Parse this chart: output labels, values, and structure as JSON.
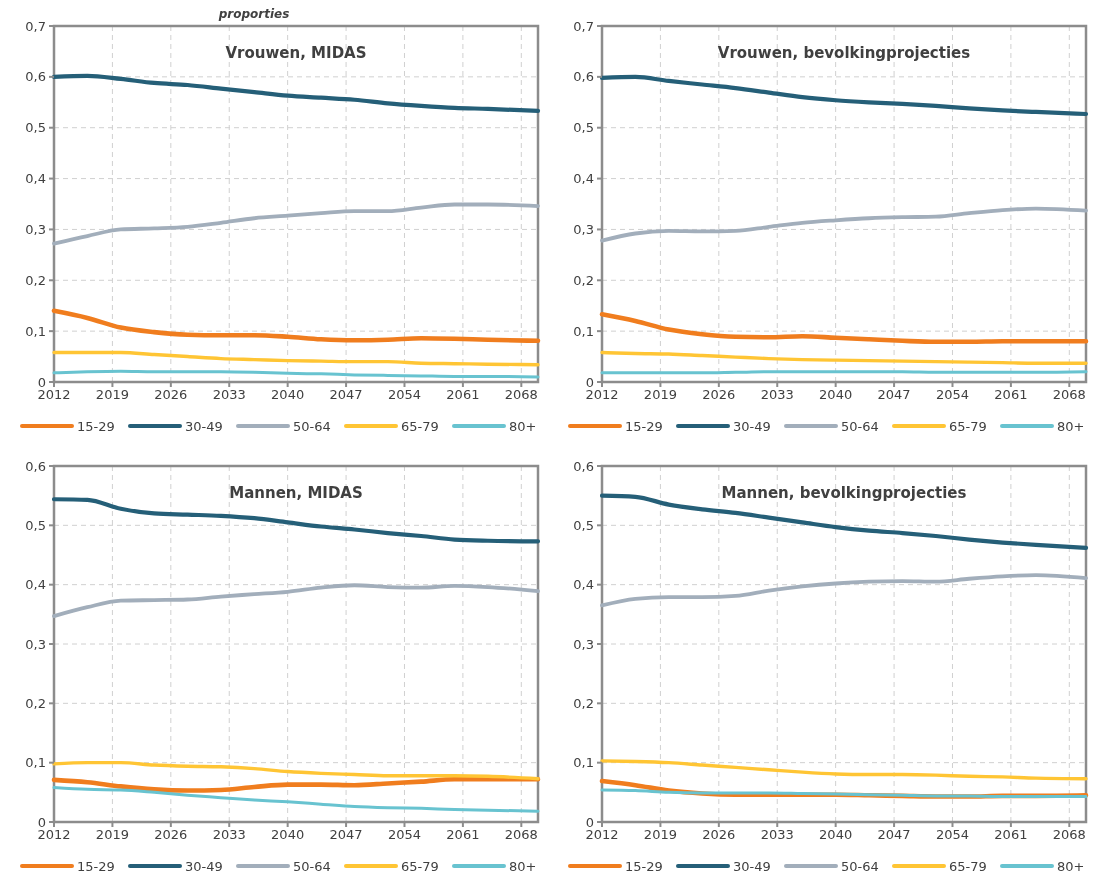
{
  "chart_data": [
    {
      "type": "line",
      "title": "Vrouwen, MIDAS",
      "ylabel": "proporties",
      "x": [
        2012,
        2016,
        2020,
        2024,
        2028,
        2032,
        2036,
        2040,
        2044,
        2048,
        2052,
        2056,
        2060,
        2064,
        2070
      ],
      "xlim": [
        2012,
        2070
      ],
      "xticks": [
        2012,
        2019,
        2026,
        2033,
        2040,
        2047,
        2054,
        2061,
        2068
      ],
      "ylim": [
        0,
        0.7
      ],
      "yticks": [
        {
          "value": 0,
          "label": "0"
        },
        {
          "value": 0.1,
          "label": "0,1"
        },
        {
          "value": 0.2,
          "label": "0,2"
        },
        {
          "value": 0.3,
          "label": "0,3"
        },
        {
          "value": 0.4,
          "label": "0,4"
        },
        {
          "value": 0.5,
          "label": "0,5"
        },
        {
          "value": 0.6,
          "label": "0,6"
        },
        {
          "value": 0.7,
          "label": "0,7"
        }
      ],
      "grid": true,
      "legend": "bottom",
      "line_style": "solid",
      "marker": "none",
      "series": [
        {
          "name": "15-29",
          "color": "#f07d1e",
          "values": [
            0.14,
            0.126,
            0.107,
            0.098,
            0.093,
            0.092,
            0.092,
            0.089,
            0.084,
            0.082,
            0.083,
            0.086,
            0.085,
            0.083,
            0.081
          ]
        },
        {
          "name": "30-49",
          "color": "#255f78",
          "values": [
            0.6,
            0.602,
            0.596,
            0.588,
            0.584,
            0.577,
            0.57,
            0.563,
            0.559,
            0.555,
            0.548,
            0.543,
            0.539,
            0.537,
            0.533
          ]
        },
        {
          "name": "50-64",
          "color": "#a2aebb",
          "values": [
            0.272,
            0.287,
            0.3,
            0.302,
            0.305,
            0.313,
            0.322,
            0.327,
            0.332,
            0.336,
            0.336,
            0.343,
            0.349,
            0.349,
            0.346
          ]
        },
        {
          "name": "65-79",
          "color": "#ffc534",
          "values": [
            0.058,
            0.058,
            0.058,
            0.054,
            0.05,
            0.046,
            0.044,
            0.042,
            0.041,
            0.04,
            0.04,
            0.037,
            0.036,
            0.035,
            0.034
          ]
        },
        {
          "name": "80+",
          "color": "#68c3d0",
          "values": [
            0.018,
            0.02,
            0.021,
            0.02,
            0.02,
            0.02,
            0.019,
            0.017,
            0.016,
            0.014,
            0.013,
            0.012,
            0.011,
            0.011,
            0.01
          ]
        }
      ]
    },
    {
      "type": "line",
      "title": "Vrouwen, bevolkingprojecties",
      "x": [
        2012,
        2016,
        2020,
        2024,
        2028,
        2032,
        2036,
        2040,
        2044,
        2048,
        2052,
        2056,
        2060,
        2064,
        2070
      ],
      "xlim": [
        2012,
        2070
      ],
      "xticks": [
        2012,
        2019,
        2026,
        2033,
        2040,
        2047,
        2054,
        2061,
        2068
      ],
      "ylim": [
        0,
        0.7
      ],
      "yticks": [
        {
          "value": 0,
          "label": "0"
        },
        {
          "value": 0.1,
          "label": "0,1"
        },
        {
          "value": 0.2,
          "label": "0,2"
        },
        {
          "value": 0.3,
          "label": "0,3"
        },
        {
          "value": 0.4,
          "label": "0,4"
        },
        {
          "value": 0.5,
          "label": "0,5"
        },
        {
          "value": 0.6,
          "label": "0,6"
        },
        {
          "value": 0.7,
          "label": "0,7"
        }
      ],
      "grid": true,
      "legend": "bottom",
      "line_style": "solid",
      "marker": "none",
      "series": [
        {
          "name": "15-29",
          "color": "#f07d1e",
          "values": [
            0.133,
            0.12,
            0.103,
            0.094,
            0.089,
            0.088,
            0.09,
            0.087,
            0.084,
            0.081,
            0.079,
            0.079,
            0.08,
            0.08,
            0.08
          ]
        },
        {
          "name": "30-49",
          "color": "#255f78",
          "values": [
            0.598,
            0.6,
            0.592,
            0.585,
            0.578,
            0.569,
            0.56,
            0.554,
            0.55,
            0.547,
            0.543,
            0.538,
            0.534,
            0.531,
            0.527
          ]
        },
        {
          "name": "50-64",
          "color": "#a2aebb",
          "values": [
            0.278,
            0.292,
            0.297,
            0.296,
            0.297,
            0.305,
            0.313,
            0.318,
            0.322,
            0.324,
            0.325,
            0.332,
            0.338,
            0.341,
            0.337
          ]
        },
        {
          "name": "65-79",
          "color": "#ffc534",
          "values": [
            0.058,
            0.056,
            0.055,
            0.052,
            0.049,
            0.046,
            0.044,
            0.043,
            0.042,
            0.041,
            0.04,
            0.039,
            0.038,
            0.037,
            0.037
          ]
        },
        {
          "name": "80+",
          "color": "#68c3d0",
          "values": [
            0.018,
            0.018,
            0.018,
            0.018,
            0.019,
            0.02,
            0.02,
            0.02,
            0.02,
            0.02,
            0.019,
            0.019,
            0.019,
            0.019,
            0.02
          ]
        }
      ]
    },
    {
      "type": "line",
      "title": "Mannen, MIDAS",
      "x": [
        2012,
        2016,
        2020,
        2024,
        2028,
        2032,
        2036,
        2040,
        2044,
        2048,
        2052,
        2056,
        2060,
        2064,
        2070
      ],
      "xlim": [
        2012,
        2070
      ],
      "xticks": [
        2012,
        2019,
        2026,
        2033,
        2040,
        2047,
        2054,
        2061,
        2068
      ],
      "ylim": [
        0,
        0.6
      ],
      "yticks": [
        {
          "value": 0,
          "label": "0"
        },
        {
          "value": 0.1,
          "label": "0,1"
        },
        {
          "value": 0.2,
          "label": "0,2"
        },
        {
          "value": 0.3,
          "label": "0,3"
        },
        {
          "value": 0.4,
          "label": "0,4"
        },
        {
          "value": 0.5,
          "label": "0,5"
        },
        {
          "value": 0.6,
          "label": "0,6"
        }
      ],
      "grid": true,
      "legend": "bottom",
      "line_style": "solid",
      "marker": "none",
      "series": [
        {
          "name": "15-29",
          "color": "#f07d1e",
          "values": [
            0.071,
            0.067,
            0.06,
            0.055,
            0.053,
            0.054,
            0.059,
            0.063,
            0.063,
            0.062,
            0.065,
            0.068,
            0.072,
            0.072,
            0.072
          ]
        },
        {
          "name": "30-49",
          "color": "#255f78",
          "values": [
            0.544,
            0.543,
            0.528,
            0.52,
            0.518,
            0.516,
            0.512,
            0.505,
            0.498,
            0.493,
            0.487,
            0.482,
            0.476,
            0.474,
            0.473
          ]
        },
        {
          "name": "50-64",
          "color": "#a2aebb",
          "values": [
            0.347,
            0.362,
            0.373,
            0.374,
            0.375,
            0.38,
            0.384,
            0.388,
            0.395,
            0.399,
            0.396,
            0.395,
            0.398,
            0.396,
            0.389
          ]
        },
        {
          "name": "65-79",
          "color": "#ffc534",
          "values": [
            0.098,
            0.1,
            0.1,
            0.096,
            0.094,
            0.093,
            0.09,
            0.085,
            0.082,
            0.08,
            0.078,
            0.078,
            0.078,
            0.077,
            0.073
          ]
        },
        {
          "name": "80+",
          "color": "#68c3d0",
          "values": [
            0.058,
            0.055,
            0.054,
            0.05,
            0.045,
            0.041,
            0.037,
            0.034,
            0.03,
            0.026,
            0.024,
            0.023,
            0.021,
            0.02,
            0.018
          ]
        }
      ]
    },
    {
      "type": "line",
      "title": "Mannen, bevolkingprojecties",
      "x": [
        2012,
        2016,
        2020,
        2024,
        2028,
        2032,
        2036,
        2040,
        2044,
        2048,
        2052,
        2056,
        2060,
        2064,
        2070
      ],
      "xlim": [
        2012,
        2070
      ],
      "xticks": [
        2012,
        2019,
        2026,
        2033,
        2040,
        2047,
        2054,
        2061,
        2068
      ],
      "ylim": [
        0,
        0.6
      ],
      "yticks": [
        {
          "value": 0,
          "label": "0"
        },
        {
          "value": 0.1,
          "label": "0,1"
        },
        {
          "value": 0.2,
          "label": "0,2"
        },
        {
          "value": 0.3,
          "label": "0,3"
        },
        {
          "value": 0.4,
          "label": "0,4"
        },
        {
          "value": 0.5,
          "label": "0,5"
        },
        {
          "value": 0.6,
          "label": "0,6"
        }
      ],
      "grid": true,
      "legend": "bottom",
      "line_style": "solid",
      "marker": "none",
      "series": [
        {
          "name": "15-29",
          "color": "#f07d1e",
          "values": [
            0.069,
            0.062,
            0.053,
            0.048,
            0.046,
            0.046,
            0.046,
            0.046,
            0.045,
            0.044,
            0.043,
            0.043,
            0.044,
            0.044,
            0.045
          ]
        },
        {
          "name": "30-49",
          "color": "#255f78",
          "values": [
            0.55,
            0.548,
            0.535,
            0.527,
            0.521,
            0.513,
            0.505,
            0.497,
            0.491,
            0.487,
            0.482,
            0.476,
            0.471,
            0.467,
            0.462
          ]
        },
        {
          "name": "50-64",
          "color": "#a2aebb",
          "values": [
            0.365,
            0.376,
            0.379,
            0.379,
            0.381,
            0.39,
            0.397,
            0.402,
            0.405,
            0.406,
            0.405,
            0.41,
            0.414,
            0.416,
            0.411
          ]
        },
        {
          "name": "65-79",
          "color": "#ffc534",
          "values": [
            0.103,
            0.102,
            0.1,
            0.096,
            0.092,
            0.088,
            0.084,
            0.081,
            0.08,
            0.08,
            0.079,
            0.077,
            0.076,
            0.074,
            0.073
          ]
        },
        {
          "name": "80+",
          "color": "#68c3d0",
          "values": [
            0.054,
            0.053,
            0.05,
            0.049,
            0.049,
            0.049,
            0.048,
            0.047,
            0.046,
            0.045,
            0.044,
            0.044,
            0.043,
            0.043,
            0.043
          ]
        }
      ]
    }
  ]
}
